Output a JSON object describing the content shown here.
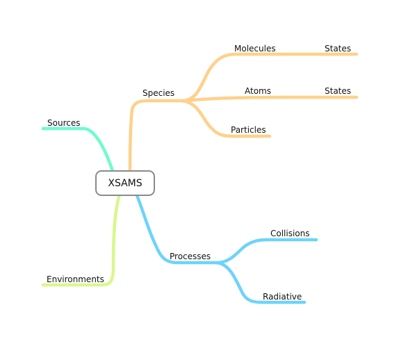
{
  "diagram": {
    "type": "mind-map",
    "center": {
      "label": "XSAMS"
    },
    "nodes": {
      "sources": {
        "label": "Sources",
        "color": "#6ffbcf"
      },
      "environments": {
        "label": "Environments",
        "color": "#d8f88d"
      },
      "species": {
        "label": "Species",
        "color": "#fed18a"
      },
      "molecules": {
        "label": "Molecules",
        "color": "#fed18a"
      },
      "molecules_states": {
        "label": "States",
        "color": "#fed18a"
      },
      "atoms": {
        "label": "Atoms",
        "color": "#fed18a"
      },
      "atoms_states": {
        "label": "States",
        "color": "#fed18a"
      },
      "particles": {
        "label": "Particles",
        "color": "#fed18a"
      },
      "processes": {
        "label": "Processes",
        "color": "#6dd3fb"
      },
      "collisions": {
        "label": "Collisions",
        "color": "#6dd3fb"
      },
      "radiative": {
        "label": "Radiative",
        "color": "#6dd3fb"
      }
    },
    "edges": [
      {
        "from": "center",
        "to": "sources"
      },
      {
        "from": "center",
        "to": "environments"
      },
      {
        "from": "center",
        "to": "species"
      },
      {
        "from": "species",
        "to": "molecules"
      },
      {
        "from": "molecules",
        "to": "molecules_states"
      },
      {
        "from": "species",
        "to": "atoms"
      },
      {
        "from": "atoms",
        "to": "atoms_states"
      },
      {
        "from": "species",
        "to": "particles"
      },
      {
        "from": "center",
        "to": "processes"
      },
      {
        "from": "processes",
        "to": "collisions"
      },
      {
        "from": "processes",
        "to": "radiative"
      }
    ]
  }
}
